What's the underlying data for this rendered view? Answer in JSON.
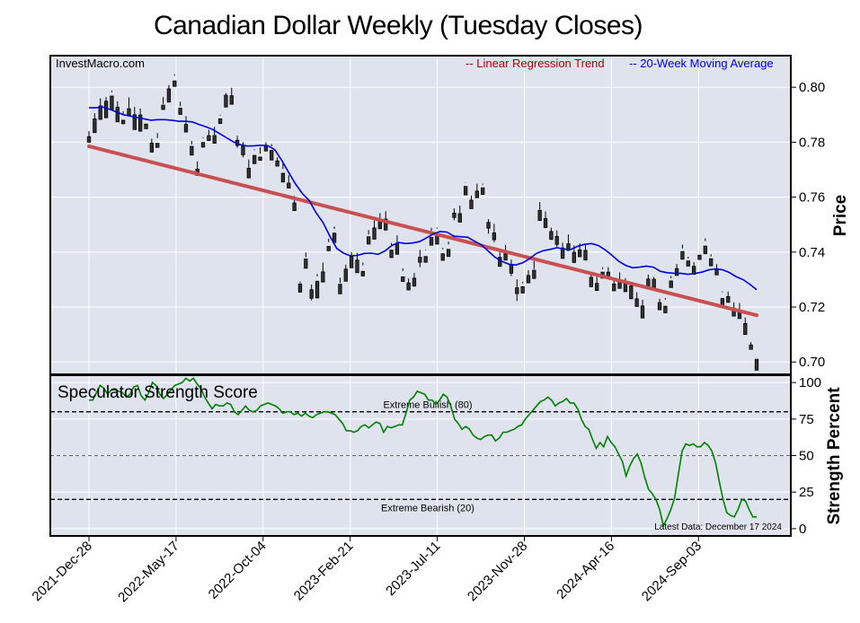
{
  "chart_data": [
    {
      "type": "candlestick",
      "title": "Canadian Dollar Weekly (Tuesday Closes)",
      "watermark": "InvestMacro.com",
      "ylabel": "Price",
      "ylim": [
        0.6955,
        0.8115
      ],
      "yticks": [
        "0.70",
        "0.72",
        "0.74",
        "0.76",
        "0.78",
        "0.80"
      ],
      "xticks": [
        "2021-Dec-28",
        "2022-May-17",
        "2022-Oct-04",
        "2023-Feb-21",
        "2023-Jul-11",
        "2023-Nov-28",
        "2024-Apr-16",
        "2024-Sep-03"
      ],
      "legend": [
        "-- Linear Regression Trend",
        "-- 20-Week Moving Average"
      ],
      "colors": {
        "up": "#ffffff",
        "down": "#333333",
        "trend": "#c85050",
        "ma": "#0000dd",
        "background": "#dfe3ee"
      },
      "trend_line": {
        "start": 0.7785,
        "end": 0.717
      },
      "moving_average": [
        0.7925,
        0.7925,
        0.7928,
        0.792,
        0.791,
        0.79,
        0.7895,
        0.789,
        0.7885,
        0.788,
        0.7882,
        0.7882,
        0.788,
        0.7876,
        0.7876,
        0.7874,
        0.7864,
        0.7856,
        0.7846,
        0.7831,
        0.7816,
        0.7801,
        0.7791,
        0.7786,
        0.7787,
        0.7789,
        0.7787,
        0.7773,
        0.7734,
        0.7691,
        0.7648,
        0.7613,
        0.7588,
        0.7543,
        0.7508,
        0.7458,
        0.7413,
        0.7396,
        0.7386,
        0.7388,
        0.7395,
        0.7396,
        0.7392,
        0.7404,
        0.7424,
        0.7435,
        0.7431,
        0.7433,
        0.7438,
        0.7451,
        0.7466,
        0.7475,
        0.7473,
        0.7458,
        0.7456,
        0.7454,
        0.744,
        0.7427,
        0.7404,
        0.7381,
        0.7366,
        0.7356,
        0.7353,
        0.7361,
        0.7376,
        0.7395,
        0.7405,
        0.741,
        0.7416,
        0.7411,
        0.741,
        0.7421,
        0.7428,
        0.7431,
        0.7424,
        0.7408,
        0.7388,
        0.7366,
        0.7351,
        0.7343,
        0.7345,
        0.7349,
        0.7345,
        0.733,
        0.7325,
        0.7323,
        0.7323,
        0.7319,
        0.7322,
        0.7327,
        0.7335,
        0.7339,
        0.7336,
        0.7326,
        0.7311,
        0.73,
        0.7283,
        0.7263
      ],
      "ohlc": [
        [
          0.782,
          0.784,
          0.781,
          0.78
        ],
        [
          0.7885,
          0.7905,
          0.7855,
          0.7835
        ],
        [
          0.7932,
          0.796,
          0.7897,
          0.7883
        ],
        [
          0.7949,
          0.7964,
          0.7896,
          0.7889
        ],
        [
          0.7968,
          0.7982,
          0.7988,
          0.7917
        ],
        [
          0.7927,
          0.7949,
          0.7881,
          0.7874
        ],
        [
          0.788,
          0.7913,
          0.7903,
          0.7867
        ],
        [
          0.7922,
          0.7963,
          0.7924,
          0.7899
        ],
        [
          0.79,
          0.7929,
          0.7861,
          0.7846
        ],
        [
          0.7899,
          0.7923,
          0.7862,
          0.784
        ],
        [
          0.7866,
          0.7885,
          0.788,
          0.7849
        ],
        [
          0.7797,
          0.7813,
          0.7786,
          0.7764
        ],
        [
          0.7796,
          0.7815,
          0.7833,
          0.7781
        ],
        [
          0.7935,
          0.7964,
          0.7939,
          0.7919
        ],
        [
          0.7994,
          0.8008,
          0.7977,
          0.7946
        ],
        [
          0.8023,
          0.8042,
          0.8047,
          0.8003
        ],
        [
          0.7924,
          0.7947,
          0.7931,
          0.7901
        ],
        [
          0.7865,
          0.7895,
          0.7857,
          0.7837
        ],
        [
          0.7785,
          0.7792,
          0.7805,
          0.7753
        ],
        [
          0.7702,
          0.773,
          0.7701,
          0.7679
        ],
        [
          0.7799,
          0.7815,
          0.7818,
          0.7782
        ],
        [
          0.7824,
          0.7845,
          0.7805,
          0.7806
        ],
        [
          0.7824,
          0.7856,
          0.7816,
          0.7796
        ],
        [
          0.7885,
          0.79,
          0.7897,
          0.7868
        ],
        [
          0.7971,
          0.7979,
          0.7939,
          0.7928
        ],
        [
          0.7969,
          0.7998,
          0.7966,
          0.7938
        ],
        [
          0.7807,
          0.7823,
          0.778,
          0.7788
        ],
        [
          0.7785,
          0.78,
          0.7745,
          0.7754
        ],
        [
          0.7705,
          0.7737,
          0.7704,
          0.767
        ],
        [
          0.7752,
          0.7774,
          0.7771,
          0.7722
        ],
        [
          0.7746,
          0.7758,
          0.7782,
          0.7734
        ],
        [
          0.7789,
          0.78,
          0.7782,
          0.7768
        ],
        [
          0.777,
          0.7793,
          0.7785,
          0.7735
        ],
        [
          0.7732,
          0.7745,
          0.7731,
          0.7713
        ],
        [
          0.7687,
          0.7702,
          0.7727,
          0.7655
        ],
        [
          0.7651,
          0.768,
          0.7648,
          0.7633
        ],
        [
          0.7579,
          0.7604,
          0.7574,
          0.7551
        ],
        [
          0.7284,
          0.7287,
          0.7293,
          0.7254
        ],
        [
          0.7375,
          0.7399,
          0.7381,
          0.7341
        ],
        [
          0.7263,
          0.7282,
          0.7224,
          0.7232
        ],
        [
          0.7294,
          0.732,
          0.7312,
          0.7233
        ],
        [
          0.7328,
          0.7362,
          0.7305,
          0.7291
        ],
        [
          0.7421,
          0.7436,
          0.7449,
          0.7405
        ],
        [
          0.7469,
          0.7493,
          0.7484,
          0.7435
        ],
        [
          0.7283,
          0.7307,
          0.7288,
          0.7248
        ],
        [
          0.7338,
          0.7354,
          0.7317,
          0.7294
        ],
        [
          0.7384,
          0.74,
          0.7366,
          0.7343
        ],
        [
          0.7371,
          0.7397,
          0.7363,
          0.7325
        ],
        [
          0.733,
          0.7352,
          0.7362,
          0.7313
        ],
        [
          0.7456,
          0.748,
          0.7464,
          0.7429
        ],
        [
          0.7488,
          0.7515,
          0.7473,
          0.7447
        ],
        [
          0.7519,
          0.7542,
          0.7497,
          0.7485
        ],
        [
          0.752,
          0.7549,
          0.7507,
          0.748
        ],
        [
          0.7407,
          0.7433,
          0.7421,
          0.738
        ],
        [
          0.743,
          0.7461,
          0.7405,
          0.7392
        ],
        [
          0.731,
          0.7341,
          0.7331,
          0.7293
        ],
        [
          0.7288,
          0.7304,
          0.728,
          0.7262
        ],
        [
          0.7305,
          0.7324,
          0.7288,
          0.7276
        ],
        [
          0.7381,
          0.7408,
          0.7345,
          0.7363
        ],
        [
          0.7384,
          0.7407,
          0.7409,
          0.7363
        ],
        [
          0.7454,
          0.7477,
          0.7488,
          0.7425
        ],
        [
          0.7462,
          0.7489,
          0.7485,
          0.7429
        ],
        [
          0.7394,
          0.7415,
          0.741,
          0.737
        ],
        [
          0.741,
          0.7438,
          0.7428,
          0.7384
        ],
        [
          0.7542,
          0.7559,
          0.7516,
          0.7526
        ],
        [
          0.754,
          0.7569,
          0.754,
          0.7509
        ],
        [
          0.7639,
          0.7654,
          0.7653,
          0.7608
        ],
        [
          0.7589,
          0.7605,
          0.7581,
          0.7558
        ],
        [
          0.7622,
          0.7649,
          0.7599,
          0.7598
        ],
        [
          0.7634,
          0.7645,
          0.7649,
          0.761
        ],
        [
          0.7508,
          0.752,
          0.7467,
          0.7487
        ],
        [
          0.747,
          0.7503,
          0.7436,
          0.7445
        ],
        [
          0.7381,
          0.7406,
          0.7361,
          0.7348
        ],
        [
          0.7395,
          0.7426,
          0.7371,
          0.7371
        ],
        [
          0.7353,
          0.7373,
          0.7313,
          0.7323
        ],
        [
          0.727,
          0.7301,
          0.7222,
          0.7249
        ],
        [
          0.7274,
          0.7286,
          0.7292,
          0.7251
        ],
        [
          0.7315,
          0.7334,
          0.7307,
          0.7288
        ],
        [
          0.7334,
          0.7367,
          0.7338,
          0.7304
        ],
        [
          0.7552,
          0.7582,
          0.7554,
          0.7515
        ],
        [
          0.7522,
          0.7548,
          0.7493,
          0.7489
        ],
        [
          0.7475,
          0.7489,
          0.7455,
          0.7446
        ],
        [
          0.7457,
          0.7479,
          0.7419,
          0.7428
        ],
        [
          0.7415,
          0.7434,
          0.741,
          0.7377
        ],
        [
          0.743,
          0.7464,
          0.742,
          0.7406
        ],
        [
          0.7399,
          0.7424,
          0.7384,
          0.7362
        ],
        [
          0.7408,
          0.7432,
          0.7394,
          0.7383
        ],
        [
          0.7406,
          0.743,
          0.7393,
          0.7371
        ],
        [
          0.7308,
          0.7322,
          0.7287,
          0.7274
        ],
        [
          0.7286,
          0.7311,
          0.7281,
          0.726
        ],
        [
          0.7327,
          0.7345,
          0.7338,
          0.7305
        ],
        [
          0.7327,
          0.7345,
          0.7313,
          0.7305
        ],
        [
          0.7284,
          0.7304,
          0.7271,
          0.7259
        ],
        [
          0.7296,
          0.7326,
          0.7295,
          0.7268
        ],
        [
          0.7286,
          0.7305,
          0.7295,
          0.7256
        ],
        [
          0.7277,
          0.7288,
          0.7248,
          0.723
        ],
        [
          0.723,
          0.7254,
          0.7218,
          0.7202
        ],
        [
          0.7204,
          0.7226,
          0.7185,
          0.716
        ],
        [
          0.7302,
          0.7318,
          0.7285,
          0.7274
        ],
        [
          0.7301,
          0.7309,
          0.7264,
          0.7262
        ],
        [
          0.7216,
          0.723,
          0.7208,
          0.719
        ],
        [
          0.7203,
          0.7227,
          0.7233,
          0.7179
        ],
        [
          0.7295,
          0.7313,
          0.7305,
          0.7271
        ],
        [
          0.734,
          0.7357,
          0.7329,
          0.7315
        ],
        [
          0.7402,
          0.7427,
          0.7413,
          0.7374
        ],
        [
          0.7368,
          0.7383,
          0.7376,
          0.7349
        ],
        [
          0.7348,
          0.7363,
          0.7319,
          0.7319
        ],
        [
          0.7389,
          0.7401,
          0.7402,
          0.7373
        ],
        [
          0.7422,
          0.745,
          0.744,
          0.7394
        ],
        [
          0.7376,
          0.7392,
          0.7384,
          0.735
        ],
        [
          0.7339,
          0.7356,
          0.7318,
          0.7317
        ],
        [
          0.7231,
          0.7257,
          0.7254,
          0.7202
        ],
        [
          0.7238,
          0.7256,
          0.7239,
          0.7217
        ],
        [
          0.7196,
          0.7217,
          0.7192,
          0.7167
        ],
        [
          0.7185,
          0.7215,
          0.7174,
          0.7158
        ],
        [
          0.714,
          0.7162,
          0.7125,
          0.71
        ],
        [
          0.7062,
          0.7072,
          0.7063,
          0.7046
        ],
        [
          0.701,
          0.701,
          0.6975,
          0.697
        ]
      ]
    },
    {
      "type": "line",
      "title": "Speculator Strength Score",
      "ylabel": "Strength Percent",
      "ylim": [
        -5,
        105
      ],
      "yticks": [
        "0",
        "25",
        "50",
        "75",
        "100"
      ],
      "reference_lines": [
        {
          "label": "Extreme Bullish (80)",
          "value": 80
        },
        {
          "value": 50
        },
        {
          "label": "Extreme Bearish (20)",
          "value": 20
        }
      ],
      "annotation": "Latest Data: December 17 2024",
      "colors": {
        "line": "#008000"
      },
      "values": [
        88,
        88,
        93,
        98,
        96,
        92,
        95,
        95,
        94,
        93,
        90,
        92,
        97,
        98,
        91,
        88,
        93,
        100,
        98,
        92,
        89,
        92,
        95,
        98,
        99,
        100,
        103,
        101,
        103,
        99,
        96,
        90,
        86,
        82,
        85,
        84,
        84,
        86,
        85,
        80,
        78,
        81,
        84,
        81,
        80,
        81,
        84,
        85,
        86,
        85,
        84,
        82,
        79,
        80,
        80,
        78,
        79,
        77,
        79,
        77,
        76,
        78,
        79,
        80,
        80,
        79,
        78,
        75,
        72,
        67,
        67,
        66,
        67,
        70,
        71,
        69,
        71,
        73,
        72,
        66,
        70,
        69,
        70,
        71,
        71,
        79,
        88,
        90,
        94,
        93,
        92,
        88,
        88,
        85,
        88,
        92,
        90,
        84,
        75,
        72,
        68,
        70,
        68,
        64,
        62,
        61,
        63,
        64,
        64,
        60,
        62,
        66,
        66,
        67,
        68,
        70,
        71,
        75,
        78,
        81,
        84,
        87,
        88,
        90,
        88,
        84,
        86,
        87,
        89,
        86,
        86,
        82,
        75,
        70,
        68,
        61,
        55,
        59,
        56,
        63,
        59,
        56,
        51,
        46,
        36,
        43,
        48,
        51,
        45,
        35,
        27,
        24,
        20,
        13,
        2,
        7,
        13,
        21,
        37,
        53,
        58,
        57,
        58,
        56,
        56,
        59,
        57,
        53,
        45,
        32,
        20,
        11,
        9,
        8,
        13,
        20,
        19,
        13,
        8,
        8
      ]
    }
  ]
}
